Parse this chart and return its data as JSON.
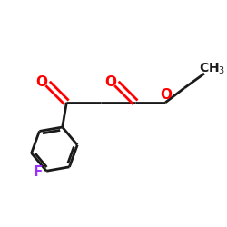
{
  "bg_color": "#ffffff",
  "bond_color": "#1a1a1a",
  "oxygen_color": "#ff0000",
  "fluorine_color": "#9b30ff",
  "carbon_text_color": "#1a1a1a",
  "line_width": 2.0,
  "font_size_atoms": 11,
  "font_size_ch3": 10,
  "xlim": [
    0,
    10
  ],
  "ylim": [
    0,
    10
  ]
}
